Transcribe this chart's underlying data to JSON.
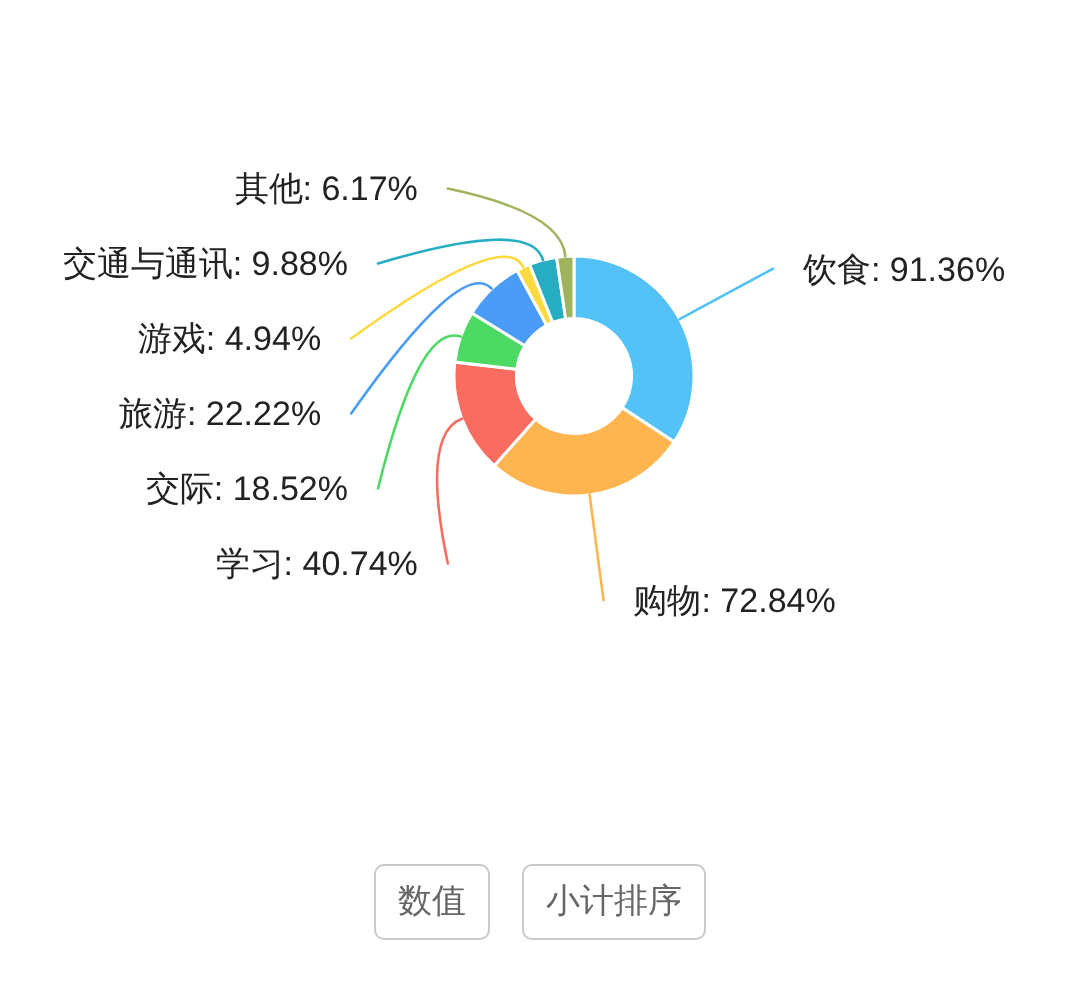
{
  "chart_data": {
    "type": "donut",
    "categories": [
      "饮食",
      "购物",
      "学习",
      "交际",
      "旅游",
      "游戏",
      "交通与通讯",
      "其他"
    ],
    "values": [
      91.36,
      72.84,
      40.74,
      18.52,
      22.22,
      4.94,
      9.88,
      6.17
    ],
    "colors": [
      "#53c2f7",
      "#ffb54f",
      "#f96c60",
      "#4cd964",
      "#4b9cf6",
      "#fcd93f",
      "#26adc2",
      "#9fb35c"
    ],
    "value_labels": [
      "91.36%",
      "72.84%",
      "40.74%",
      "18.52%",
      "22.22%",
      "4.94%",
      "9.88%",
      "6.17%"
    ],
    "annotations": [
      "数值",
      "小计排序"
    ]
  }
}
